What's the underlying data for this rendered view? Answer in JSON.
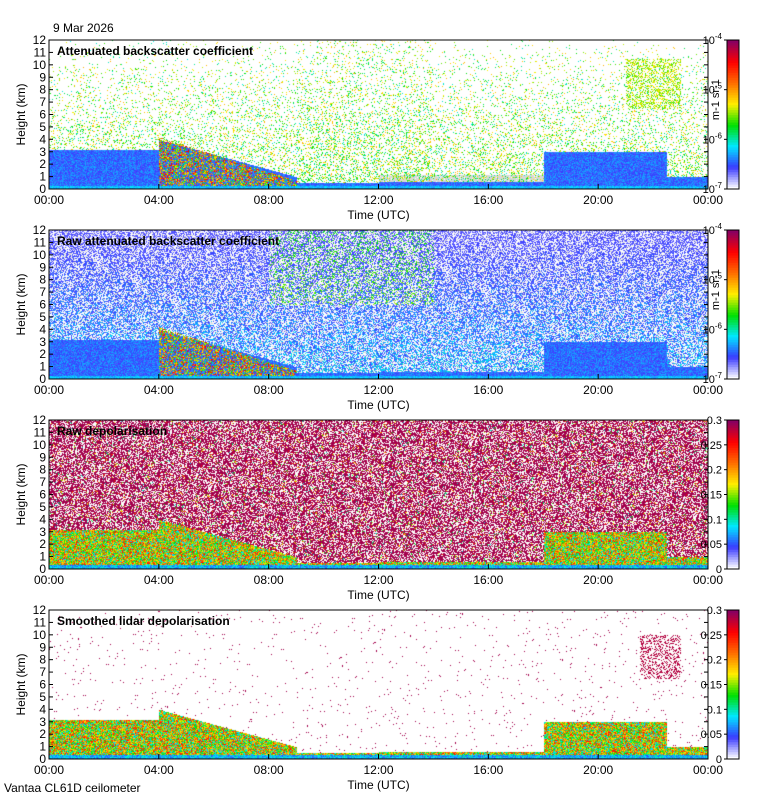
{
  "header": {
    "date": "9 Mar 2026",
    "footer": "Vantaa CL61D ceilometer"
  },
  "chart_data": [
    {
      "type": "heatmap",
      "title": "Attenuated backscatter coefficient",
      "xlabel": "Time (UTC)",
      "ylabel": "Height (km)",
      "xticks": [
        "00:00",
        "04:00",
        "08:00",
        "12:00",
        "16:00",
        "20:00",
        "00:00"
      ],
      "yticks": [
        "0",
        "1",
        "2",
        "3",
        "4",
        "5",
        "6",
        "7",
        "8",
        "9",
        "10",
        "11",
        "12"
      ],
      "xlim": [
        0,
        24
      ],
      "ylim": [
        0,
        12
      ],
      "colorbar": {
        "scale": "log",
        "label": "m-1 sr-1",
        "ticks": [
          {
            "base": "10",
            "exp": "-7"
          },
          {
            "base": "10",
            "exp": "-6"
          },
          {
            "base": "10",
            "exp": "-5"
          },
          {
            "base": "10",
            "exp": "-4"
          }
        ]
      },
      "grid": false
    },
    {
      "type": "heatmap",
      "title": "Raw attenuated backscatter coefficient",
      "xlabel": "Time (UTC)",
      "ylabel": "Height (km)",
      "xticks": [
        "00:00",
        "04:00",
        "08:00",
        "12:00",
        "16:00",
        "20:00",
        "00:00"
      ],
      "yticks": [
        "0",
        "1",
        "2",
        "3",
        "4",
        "5",
        "6",
        "7",
        "8",
        "9",
        "10",
        "11",
        "12"
      ],
      "xlim": [
        0,
        24
      ],
      "ylim": [
        0,
        12
      ],
      "colorbar": {
        "scale": "log",
        "label": "m-1 sr-1",
        "ticks": [
          {
            "base": "10",
            "exp": "-7"
          },
          {
            "base": "10",
            "exp": "-6"
          },
          {
            "base": "10",
            "exp": "-5"
          },
          {
            "base": "10",
            "exp": "-4"
          }
        ]
      },
      "grid": false
    },
    {
      "type": "heatmap",
      "title": "Raw depolarisation",
      "xlabel": "Time (UTC)",
      "ylabel": "Height (km)",
      "xticks": [
        "00:00",
        "04:00",
        "08:00",
        "12:00",
        "16:00",
        "20:00",
        "00:00"
      ],
      "yticks": [
        "0",
        "1",
        "2",
        "3",
        "4",
        "5",
        "6",
        "7",
        "8",
        "9",
        "10",
        "11",
        "12"
      ],
      "xlim": [
        0,
        24
      ],
      "ylim": [
        0,
        12
      ],
      "colorbar": {
        "scale": "linear",
        "label": "",
        "ticks": [
          "0",
          "0.05",
          "0.1",
          "0.15",
          "0.2",
          "0.25",
          "0.3"
        ]
      },
      "grid": false
    },
    {
      "type": "heatmap",
      "title": "Smoothed lidar depolarisation",
      "xlabel": "Time (UTC)",
      "ylabel": "Height (km)",
      "xticks": [
        "00:00",
        "04:00",
        "08:00",
        "12:00",
        "16:00",
        "20:00",
        "00:00"
      ],
      "yticks": [
        "0",
        "1",
        "2",
        "3",
        "4",
        "5",
        "6",
        "7",
        "8",
        "9",
        "10",
        "11",
        "12"
      ],
      "xlim": [
        0,
        24
      ],
      "ylim": [
        0,
        12
      ],
      "colorbar": {
        "scale": "linear",
        "label": "",
        "ticks": [
          "0",
          "0.05",
          "0.1",
          "0.15",
          "0.2",
          "0.25",
          "0.3"
        ]
      },
      "grid": false
    }
  ],
  "colors": {
    "colormap": [
      "#ffffff",
      "#3a3aff",
      "#00e8ff",
      "#00e000",
      "#fff000",
      "#ff7000",
      "#ff0000",
      "#8a0060"
    ],
    "no_signal": "#d8d8d8"
  }
}
